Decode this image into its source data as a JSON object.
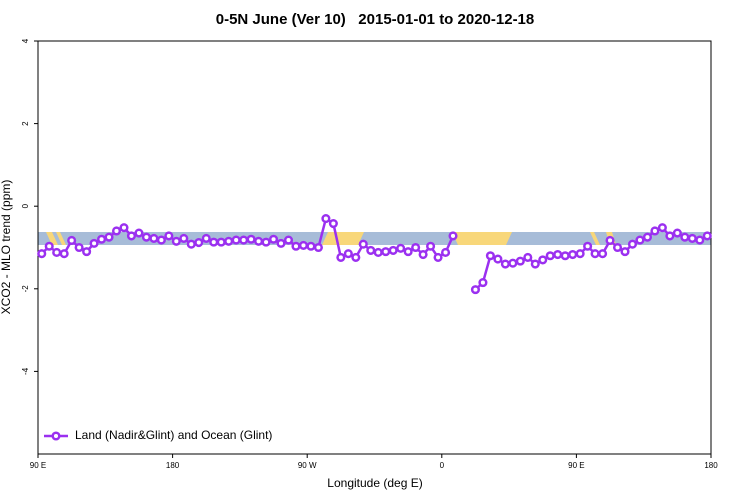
{
  "chart_data": {
    "type": "line",
    "title": "0-5N June (Ver 10)   2015-01-01 to 2020-12-18",
    "xlabel": "Longitude (deg E)",
    "ylabel": "XCO2 - MLO trend (ppm)",
    "xlim": [
      90,
      540
    ],
    "ylim": [
      -6,
      4
    ],
    "xticks": [
      {
        "value": 90,
        "label": "90 E"
      },
      180,
      {
        "value": 270,
        "label": "90 W"
      },
      {
        "value": 360,
        "label": "0"
      },
      {
        "value": 450,
        "label": "90 E"
      },
      {
        "value": 540,
        "label": "180"
      }
    ],
    "yticks": [
      -4,
      -2,
      0,
      2,
      4
    ],
    "legend": "bottom-left",
    "x": [
      92.5,
      97.5,
      102.5,
      107.5,
      112.5,
      117.5,
      122.5,
      127.5,
      132.5,
      137.5,
      142.5,
      147.5,
      152.5,
      157.5,
      162.5,
      167.5,
      172.5,
      177.5,
      182.5,
      187.5,
      192.5,
      197.5,
      202.5,
      207.5,
      212.5,
      217.5,
      222.5,
      227.5,
      232.5,
      237.5,
      242.5,
      247.5,
      252.5,
      257.5,
      262.5,
      267.5,
      272.5,
      277.5,
      282.5,
      287.5,
      292.5,
      297.5,
      302.5,
      307.5,
      312.5,
      317.5,
      322.5,
      327.5,
      332.5,
      337.5,
      342.5,
      347.5,
      352.5,
      357.5,
      362.5,
      367.5,
      372.5,
      377.5,
      382.5,
      387.5,
      392.5,
      397.5,
      402.5,
      407.5,
      412.5,
      417.5,
      422.5,
      427.5,
      432.5,
      437.5,
      442.5,
      447.5,
      452.5,
      457.5,
      462.5,
      467.5,
      472.5,
      477.5,
      482.5,
      487.5,
      492.5,
      497.5,
      502.5,
      507.5,
      512.5,
      517.5,
      522.5,
      527.5,
      532.5,
      537.5
    ],
    "series": [
      {
        "name": "Land (Nadir&Glint) and Ocean (Glint)",
        "color": "#9b30f0",
        "values": [
          -1.15,
          -0.97,
          -1.12,
          -1.15,
          -0.83,
          -1.0,
          -1.1,
          -0.9,
          -0.8,
          -0.75,
          -0.6,
          -0.52,
          -0.72,
          -0.65,
          -0.75,
          -0.78,
          -0.82,
          -0.72,
          -0.85,
          -0.78,
          -0.92,
          -0.88,
          -0.78,
          -0.87,
          -0.87,
          -0.85,
          -0.82,
          -0.82,
          -0.8,
          -0.85,
          -0.87,
          -0.8,
          -0.9,
          -0.82,
          -0.97,
          -0.95,
          -0.97,
          -1.0,
          -0.3,
          -0.42,
          -1.24,
          -1.15,
          -1.24,
          -0.92,
          -1.07,
          -1.12,
          -1.1,
          -1.07,
          -1.02,
          -1.1,
          -1.0,
          -1.17,
          -0.97,
          -1.24,
          -1.12,
          -0.72,
          null,
          null,
          -2.02,
          -1.85,
          -1.2,
          -1.28,
          -1.4,
          -1.38,
          -1.33,
          -1.24,
          -1.4,
          -1.3,
          -1.2,
          -1.17,
          -1.2,
          -1.17,
          -1.15,
          -0.97,
          -1.15,
          -1.15,
          -0.83,
          -1.0,
          -1.1,
          -0.92,
          -0.82,
          -0.75,
          -0.6,
          -0.52,
          -0.72,
          -0.65,
          -0.75,
          -0.78,
          -0.82,
          -0.72
        ]
      }
    ]
  }
}
